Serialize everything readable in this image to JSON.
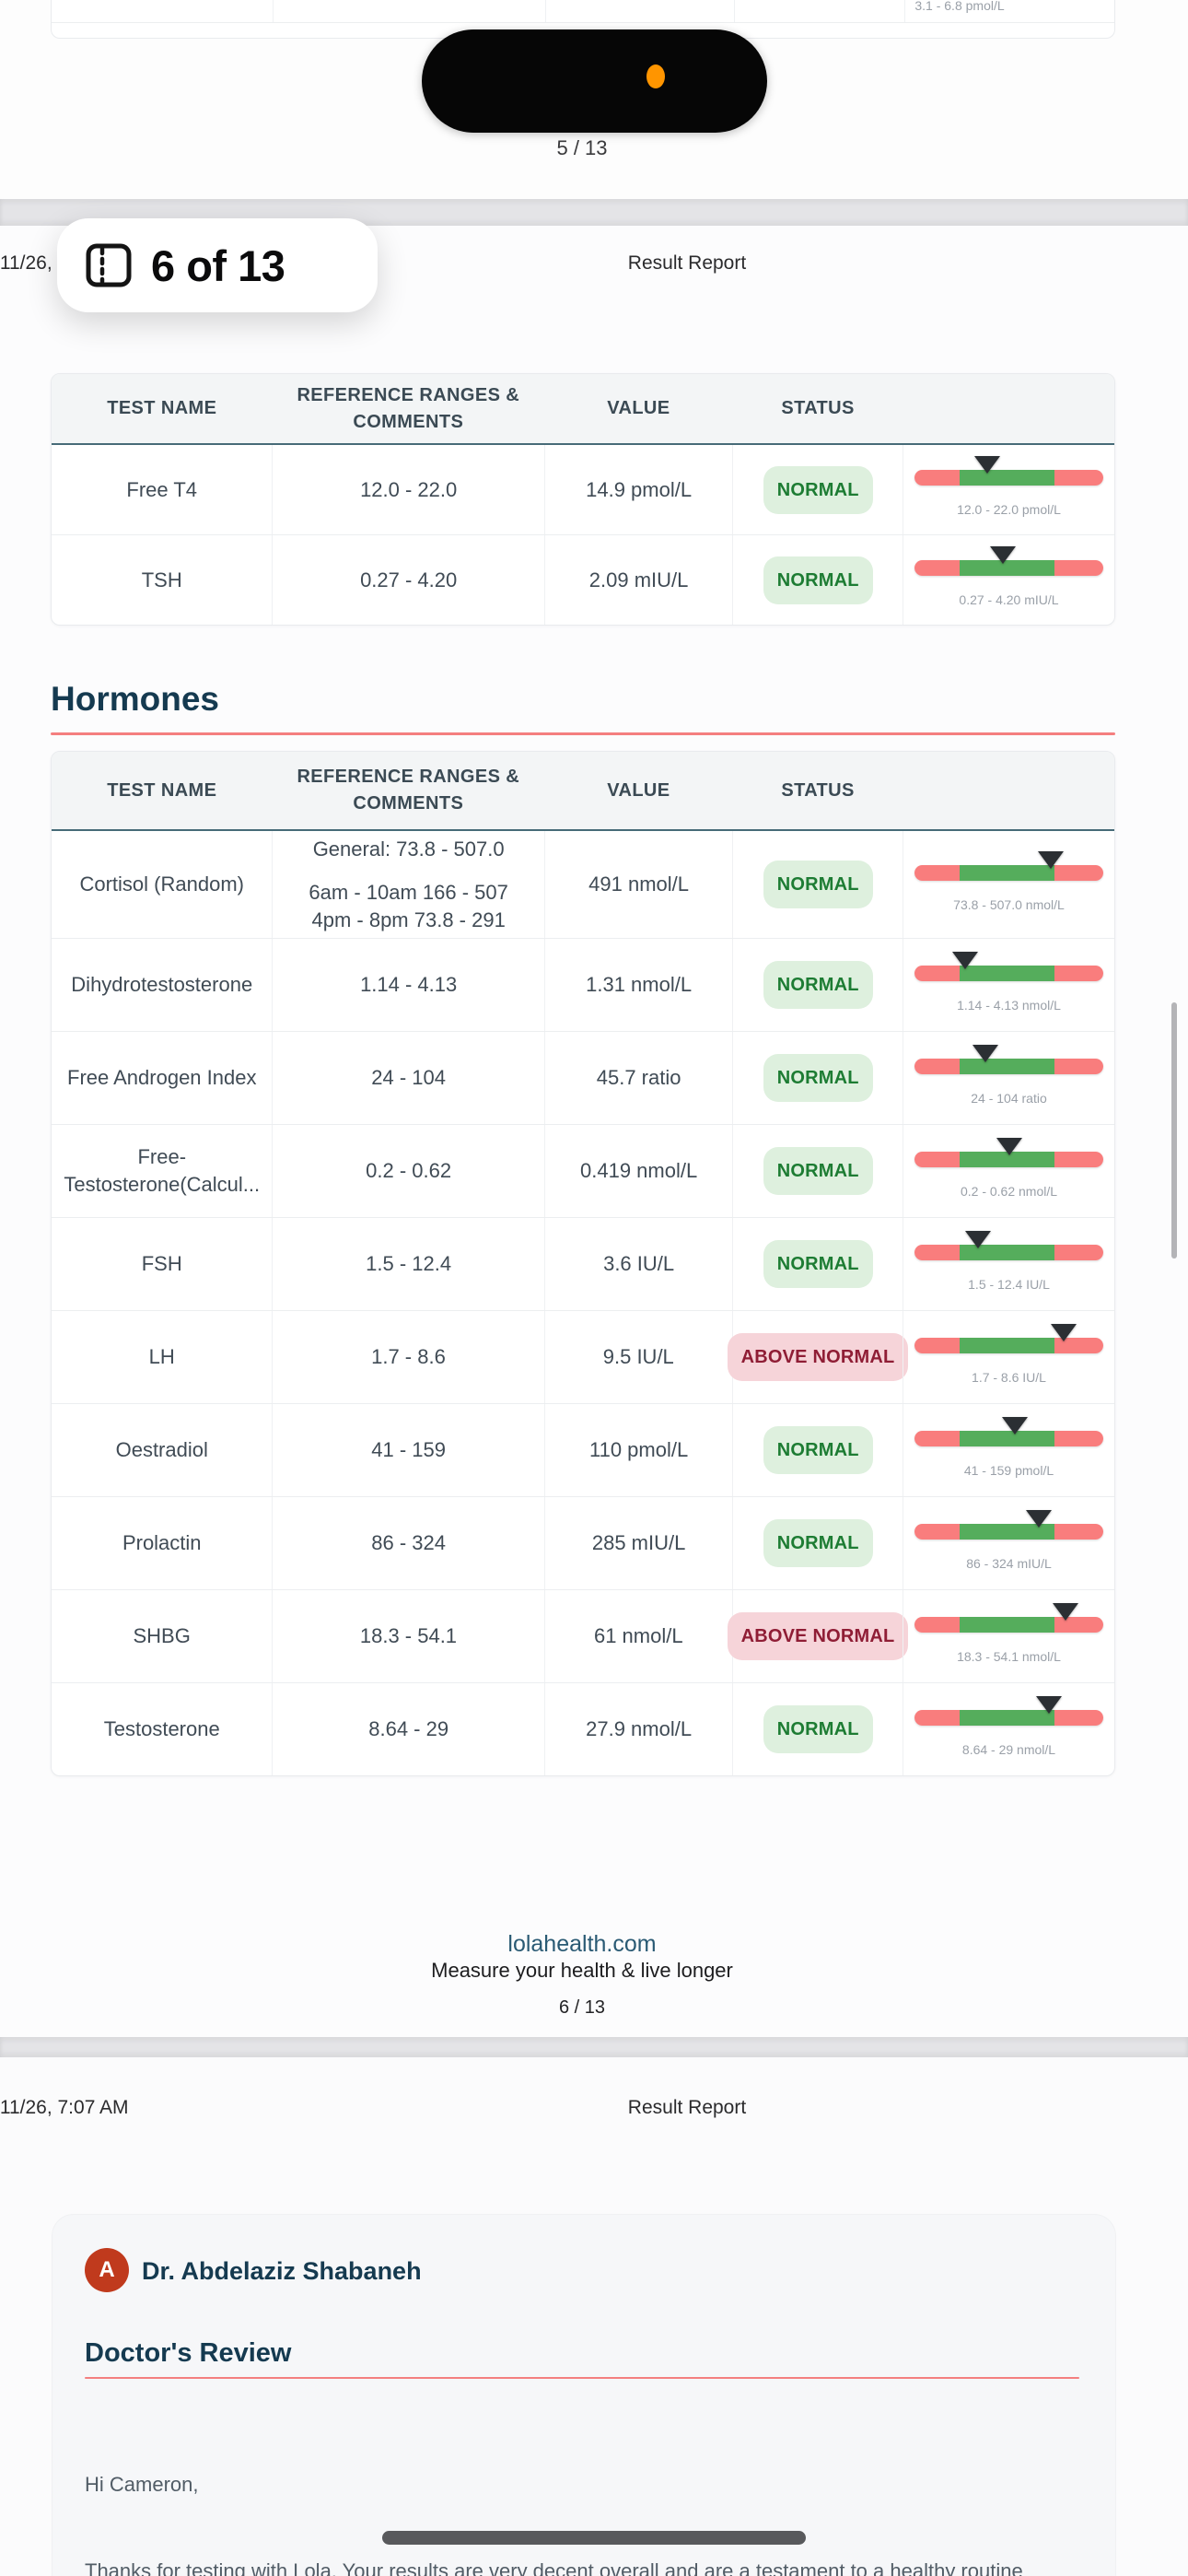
{
  "colors": {
    "gauge_red": "#f97d7d",
    "gauge_green": "#55ad5c",
    "badge_normal_bg": "#def0de",
    "badge_normal_text": "#1d7c33",
    "badge_above_bg": "#f6d4d9",
    "badge_above_text": "#8f1d35",
    "heading": "#153a50",
    "accent_rule": "#f47f7f",
    "link": "#2a5a74",
    "mic_dot": "#ff9500",
    "avatar_bg": "#c03a1d"
  },
  "viewer": {
    "page_badge_label": "6 of 13",
    "top_page_indicator": "5 / 13"
  },
  "page5": {
    "partial_gauge_label": "3.1 - 6.8 pmol/L",
    "page_number": "5 / 13"
  },
  "page6": {
    "header": {
      "date": "/11/26, 7:07 AM",
      "title": "Result Report"
    },
    "section_title": "Hormones",
    "table1": {
      "columns": [
        "TEST NAME",
        "REFERENCE RANGES & COMMENTS",
        "VALUE",
        "STATUS",
        ""
      ],
      "rows": [
        {
          "name": "Free T4",
          "ref_lines": [
            "12.0 - 22.0"
          ],
          "value": "14.9 pmol/L",
          "status": "NORMAL",
          "status_type": "normal",
          "marker_pct": 38.5,
          "gauge_label": "12.0 - 22.0 pmol/L"
        },
        {
          "name": "TSH",
          "ref_lines": [
            "0.27 - 4.20"
          ],
          "value": "2.09 mIU/L",
          "status": "NORMAL",
          "status_type": "normal",
          "marker_pct": 47,
          "gauge_label": "0.27 - 4.20 mIU/L"
        }
      ]
    },
    "table2": {
      "columns": [
        "TEST NAME",
        "REFERENCE RANGES & COMMENTS",
        "VALUE",
        "STATUS",
        ""
      ],
      "rows": [
        {
          "name": "Cortisol (Random)",
          "ref_lines": [
            "General: 73.8 - 507.0",
            "",
            "6am - 10am 166 - 507",
            "4pm - 8pm 73.8 - 291"
          ],
          "value": "491 nmol/L",
          "status": "NORMAL",
          "status_type": "normal",
          "marker_pct": 72,
          "gauge_label": "73.8 - 507.0 nmol/L"
        },
        {
          "name": "Dihydrotestosterone",
          "ref_lines": [
            "1.14 - 4.13"
          ],
          "value": "1.31 nmol/L",
          "status": "NORMAL",
          "status_type": "normal",
          "marker_pct": 27,
          "gauge_label": "1.14 - 4.13 nmol/L"
        },
        {
          "name": "Free Androgen Index",
          "ref_lines": [
            "24 - 104"
          ],
          "value": "45.7 ratio",
          "status": "NORMAL",
          "status_type": "normal",
          "marker_pct": 37.5,
          "gauge_label": "24 - 104 ratio"
        },
        {
          "name": "Free-Testosterone(Calcul...",
          "ref_lines": [
            "0.2 - 0.62"
          ],
          "value": "0.419 nmol/L",
          "status": "NORMAL",
          "status_type": "normal",
          "marker_pct": 50,
          "gauge_label": "0.2 - 0.62 nmol/L"
        },
        {
          "name": "FSH",
          "ref_lines": [
            "1.5 - 12.4"
          ],
          "value": "3.6 IU/L",
          "status": "NORMAL",
          "status_type": "normal",
          "marker_pct": 33.5,
          "gauge_label": "1.5 - 12.4 IU/L"
        },
        {
          "name": "LH",
          "ref_lines": [
            "1.7 - 8.6"
          ],
          "value": "9.5 IU/L",
          "status": "ABOVE NORMAL",
          "status_type": "above",
          "marker_pct": 79,
          "gauge_label": "1.7 - 8.6 IU/L"
        },
        {
          "name": "Oestradiol",
          "ref_lines": [
            "41 - 159"
          ],
          "value": "110 pmol/L",
          "status": "NORMAL",
          "status_type": "normal",
          "marker_pct": 53,
          "gauge_label": "41 - 159 pmol/L"
        },
        {
          "name": "Prolactin",
          "ref_lines": [
            "86 - 324"
          ],
          "value": "285 mIU/L",
          "status": "NORMAL",
          "status_type": "normal",
          "marker_pct": 66,
          "gauge_label": "86 - 324 mIU/L"
        },
        {
          "name": "SHBG",
          "ref_lines": [
            "18.3 - 54.1"
          ],
          "value": "61 nmol/L",
          "status": "ABOVE NORMAL",
          "status_type": "above",
          "marker_pct": 80,
          "gauge_label": "18.3 - 54.1 nmol/L"
        },
        {
          "name": "Testosterone",
          "ref_lines": [
            "8.64 - 29"
          ],
          "value": "27.9 nmol/L",
          "status": "NORMAL",
          "status_type": "normal",
          "marker_pct": 71,
          "gauge_label": "8.64 - 29 nmol/L"
        }
      ]
    },
    "footer": {
      "site": "lolahealth.com",
      "tagline": "Measure your health & live longer",
      "page_number": "6 / 13"
    }
  },
  "page7": {
    "header": {
      "date": "/11/26, 7:07 AM",
      "title": "Result Report"
    },
    "doctor": {
      "avatar_initial": "A",
      "name": "Dr. Abdelaziz Shabaneh",
      "section_title": "Doctor's Review",
      "greeting": "Hi Cameron,",
      "body_preview": "Thanks for testing with Lola. Your results are very decent overall and are a testament to a healthy routine"
    }
  }
}
